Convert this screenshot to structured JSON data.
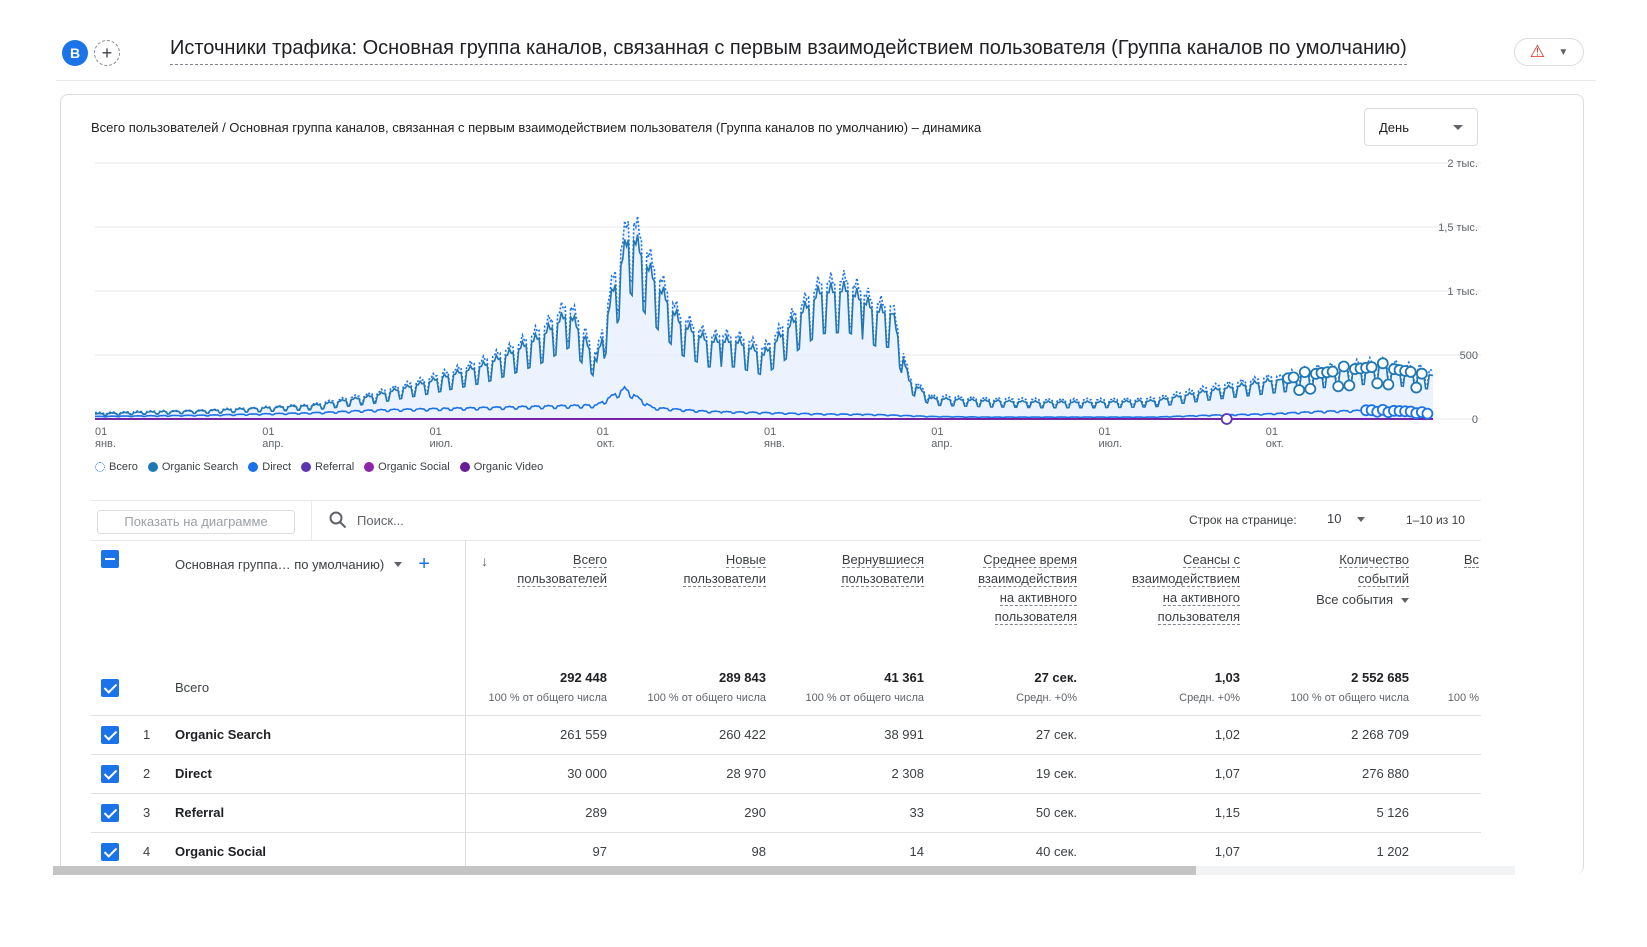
{
  "header": {
    "avatar_letter": "B",
    "add_label": "+",
    "title": "Источники трафика: Основная группа каналов, связанная с первым взаимодействием пользователя (Группа каналов по умолчанию)",
    "alert_icon": "⚠"
  },
  "chart_section": {
    "title": "Всего пользователей / Основная группа каналов, связанная с первым взаимодействием пользователя (Группа каналов по умолчанию) – динамика",
    "granularity": "День"
  },
  "chart_data": {
    "type": "line",
    "ylim": [
      0,
      2000
    ],
    "y_ticks": [
      "2 тыс.",
      "1,5 тыс.",
      "1 тыс.",
      "500",
      "0"
    ],
    "y_tick_values": [
      2000,
      1500,
      1000,
      500,
      0
    ],
    "x_ticks": [
      {
        "day": "01",
        "month": "янв."
      },
      {
        "day": "01",
        "month": "апр."
      },
      {
        "day": "01",
        "month": "июл."
      },
      {
        "day": "01",
        "month": "окт."
      },
      {
        "day": "01",
        "month": "янв."
      },
      {
        "day": "01",
        "month": "апр."
      },
      {
        "day": "01",
        "month": "июл."
      },
      {
        "day": "01",
        "month": "окт."
      }
    ],
    "x_tick_month_index": [
      0,
      3,
      6,
      9,
      12,
      15,
      18,
      21
    ],
    "x_month_range": [
      0,
      24
    ],
    "series": [
      {
        "name": "Всего",
        "style": "dotted",
        "color": "#1a73e8",
        "points": [
          [
            0,
            50
          ],
          [
            1,
            60
          ],
          [
            2,
            70
          ],
          [
            3,
            90
          ],
          [
            4,
            120
          ],
          [
            5,
            200
          ],
          [
            6,
            320
          ],
          [
            7,
            460
          ],
          [
            7.5,
            560
          ],
          [
            8,
            700
          ],
          [
            8.5,
            900
          ],
          [
            9,
            500
          ],
          [
            9.3,
            1100
          ],
          [
            9.6,
            1600
          ],
          [
            10,
            1200
          ],
          [
            10.5,
            800
          ],
          [
            11,
            650
          ],
          [
            11.5,
            650
          ],
          [
            12,
            550
          ],
          [
            12.5,
            800
          ],
          [
            13,
            1050
          ],
          [
            13.5,
            1080
          ],
          [
            14,
            900
          ],
          [
            14.3,
            880
          ],
          [
            14.6,
            330
          ],
          [
            15,
            180
          ],
          [
            16,
            160
          ],
          [
            17,
            150
          ],
          [
            18,
            150
          ],
          [
            19,
            160
          ],
          [
            20,
            250
          ],
          [
            21,
            320
          ],
          [
            22,
            400
          ],
          [
            23,
            450
          ],
          [
            24,
            380
          ]
        ]
      },
      {
        "name": "Organic Search",
        "style": "solid",
        "color": "#1f77b4",
        "points": [
          [
            0,
            40
          ],
          [
            1,
            55
          ],
          [
            2,
            65
          ],
          [
            3,
            85
          ],
          [
            4,
            110
          ],
          [
            5,
            180
          ],
          [
            6,
            290
          ],
          [
            7,
            420
          ],
          [
            7.5,
            520
          ],
          [
            8,
            640
          ],
          [
            8.5,
            820
          ],
          [
            9,
            450
          ],
          [
            9.3,
            1000
          ],
          [
            9.6,
            1450
          ],
          [
            10,
            1100
          ],
          [
            10.5,
            740
          ],
          [
            11,
            600
          ],
          [
            11.5,
            600
          ],
          [
            12,
            500
          ],
          [
            12.5,
            740
          ],
          [
            13,
            980
          ],
          [
            13.5,
            1000
          ],
          [
            14,
            840
          ],
          [
            14.3,
            820
          ],
          [
            14.6,
            300
          ],
          [
            15,
            160
          ],
          [
            16,
            140
          ],
          [
            17,
            130
          ],
          [
            18,
            130
          ],
          [
            19,
            140
          ],
          [
            20,
            220
          ],
          [
            21,
            290
          ],
          [
            22,
            360
          ],
          [
            23,
            410
          ],
          [
            24,
            340
          ]
        ]
      },
      {
        "name": "Direct",
        "style": "solid",
        "color": "#1a73e8",
        "points": [
          [
            0,
            20
          ],
          [
            1,
            25
          ],
          [
            2,
            30
          ],
          [
            3,
            40
          ],
          [
            4,
            50
          ],
          [
            5,
            70
          ],
          [
            6,
            80
          ],
          [
            7,
            90
          ],
          [
            8,
            100
          ],
          [
            9,
            110
          ],
          [
            9.5,
            240
          ],
          [
            10,
            90
          ],
          [
            11,
            60
          ],
          [
            12,
            50
          ],
          [
            13,
            40
          ],
          [
            14,
            35
          ],
          [
            15,
            20
          ],
          [
            16,
            15
          ],
          [
            17,
            15
          ],
          [
            18,
            15
          ],
          [
            19,
            15
          ],
          [
            20,
            30
          ],
          [
            21,
            40
          ],
          [
            22,
            60
          ],
          [
            23,
            70
          ],
          [
            24,
            50
          ]
        ]
      },
      {
        "name": "Referral",
        "style": "solid",
        "color": "#5e35b1",
        "points": [
          [
            0,
            1
          ],
          [
            24,
            1
          ]
        ]
      },
      {
        "name": "Organic Social",
        "style": "solid",
        "color": "#8e24aa",
        "points": [
          [
            0,
            1
          ],
          [
            24,
            1
          ]
        ]
      },
      {
        "name": "Organic Video",
        "style": "solid",
        "color": "#6a1b9a",
        "points": [
          [
            0,
            0
          ],
          [
            24,
            0
          ]
        ]
      }
    ]
  },
  "legend": [
    {
      "label": "Всего",
      "color": "#1a73e8",
      "dotted": true
    },
    {
      "label": "Organic Search",
      "color": "#1f77b4",
      "dotted": false
    },
    {
      "label": "Direct",
      "color": "#1a73e8",
      "dotted": false
    },
    {
      "label": "Referral",
      "color": "#5e35b1",
      "dotted": false
    },
    {
      "label": "Organic Social",
      "color": "#8e24aa",
      "dotted": false
    },
    {
      "label": "Organic Video",
      "color": "#6a1b9a",
      "dotted": false
    }
  ],
  "table_controls": {
    "show_on_chart": "Показать на диаграмме",
    "search_placeholder": "Поиск...",
    "rows_per_page_label": "Строк на странице:",
    "rows_per_page": "10",
    "pagination": "1–10 из 10"
  },
  "table": {
    "dimension_header": "Основная группа… по умолчанию)",
    "sort_icon": "↓",
    "columns": [
      {
        "lines": [
          "Всего",
          "пользователей"
        ],
        "sub": ""
      },
      {
        "lines": [
          "Новые",
          "пользователи"
        ],
        "sub": ""
      },
      {
        "lines": [
          "Вернувшиеся",
          "пользователи"
        ],
        "sub": ""
      },
      {
        "lines": [
          "Среднее время",
          "взаимодействия",
          "на активного",
          "пользователя"
        ],
        "sub": ""
      },
      {
        "lines": [
          "Сеансы с",
          "взаимодействием",
          "на активного",
          "пользователя"
        ],
        "sub": ""
      },
      {
        "lines": [
          "Количество",
          "событий"
        ],
        "sub": "Все события"
      },
      {
        "lines": [
          "Вс"
        ],
        "sub": ""
      }
    ],
    "total": {
      "label": "Всего",
      "values": [
        "292 448",
        "289 843",
        "41 361",
        "27 сек.",
        "1,03",
        "2 552 685",
        ""
      ],
      "subs": [
        "100 % от общего числа",
        "100 % от общего числа",
        "100 % от общего числа",
        "Средн. +0%",
        "Средн. +0%",
        "100 % от общего числа",
        "100 %"
      ]
    },
    "rows": [
      {
        "index": "1",
        "name": "Organic Search",
        "values": [
          "261 559",
          "260 422",
          "38 991",
          "27 сек.",
          "1,02",
          "2 268 709"
        ]
      },
      {
        "index": "2",
        "name": "Direct",
        "values": [
          "30 000",
          "28 970",
          "2 308",
          "19 сек.",
          "1,07",
          "276 880"
        ]
      },
      {
        "index": "3",
        "name": "Referral",
        "values": [
          "289",
          "290",
          "33",
          "50 сек.",
          "1,15",
          "5 126"
        ]
      },
      {
        "index": "4",
        "name": "Organic Social",
        "values": [
          "97",
          "98",
          "14",
          "40 сек.",
          "1,07",
          "1 202"
        ]
      }
    ]
  }
}
